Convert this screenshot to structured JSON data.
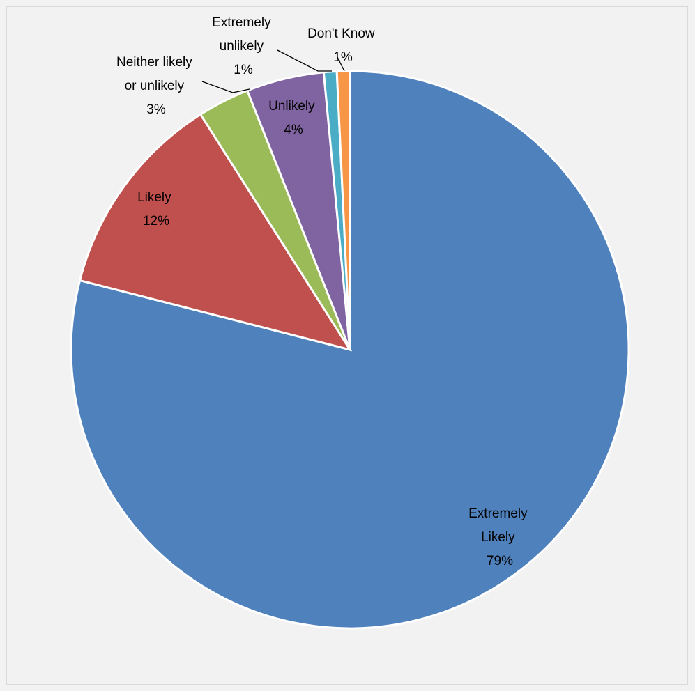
{
  "chart_data": {
    "type": "pie",
    "title": "",
    "slices": [
      {
        "name": "Extremely Likely",
        "value": 79,
        "label_lines": [
          "Extremely",
          "Likely",
          "79%"
        ],
        "color": "#4f81bd"
      },
      {
        "name": "Likely",
        "value": 12,
        "label_lines": [
          "Likely",
          "12%"
        ],
        "color": "#c0504d"
      },
      {
        "name": "Neither likely or unlikely",
        "value": 3,
        "label_lines": [
          "Neither likely",
          "or unlikely",
          "3%"
        ],
        "color": "#9bbb59"
      },
      {
        "name": "Unlikely",
        "value": 4.5,
        "label_lines": [
          "Unlikely",
          "4%"
        ],
        "color": "#8064a2"
      },
      {
        "name": "Extremely unlikely",
        "value": 0.75,
        "label_lines": [
          "Extremely",
          "unlikely",
          "1%"
        ],
        "color": "#4bacc6"
      },
      {
        "name": "Don't Know",
        "value": 0.75,
        "label_lines": [
          "Don't Know",
          "1%"
        ],
        "color": "#f79646"
      }
    ],
    "legend": "none",
    "start": "top",
    "direction": "clockwise"
  }
}
